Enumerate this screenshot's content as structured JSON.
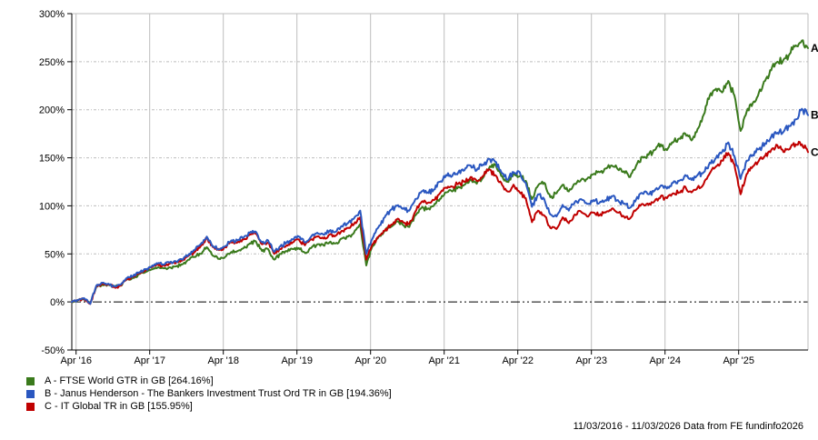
{
  "chart_data": {
    "type": "line",
    "title": "",
    "grid": true,
    "legend_position": "bottom-left",
    "x_range": {
      "start": "11/03/2016",
      "end": "11/03/2026",
      "months": 120
    },
    "x_axis": {
      "tick_labels": [
        "Apr '16",
        "Apr '17",
        "Apr '18",
        "Apr '19",
        "Apr '20",
        "Apr '21",
        "Apr '22",
        "Apr '23",
        "Apr '24",
        "Apr '25"
      ]
    },
    "y_axis": {
      "min": -50,
      "max": 300,
      "step": 50,
      "unit": "%",
      "tick_values": [
        300,
        250,
        200,
        150,
        100,
        50,
        0,
        -50
      ],
      "tick_labels": [
        "300%",
        "250%",
        "200%",
        "150%",
        "100%",
        "50%",
        "0%",
        "-50%"
      ]
    },
    "sampling": "monthly estimates read from chart, 11/03/2016 = 0%",
    "series": [
      {
        "key": "A",
        "name": "FTSE World GTR in GB",
        "final_value_pct": 264.16,
        "color": "#3a7a1c",
        "values": [
          0,
          2,
          3,
          -1,
          16,
          18,
          18,
          16,
          17,
          24,
          25,
          29,
          31,
          34,
          36,
          35,
          36,
          37,
          39,
          44,
          47,
          50,
          57,
          48,
          45,
          47,
          52,
          53,
          56,
          61,
          63,
          53,
          55,
          44,
          50,
          53,
          55,
          56,
          51,
          56,
          60,
          59,
          62,
          61,
          66,
          68,
          72,
          81,
          38,
          58,
          68,
          74,
          78,
          84,
          80,
          78,
          90,
          98,
          97,
          100,
          107,
          114,
          115,
          120,
          122,
          127,
          123,
          129,
          139,
          143,
          131,
          125,
          133,
          131,
          126,
          107,
          121,
          124,
          109,
          113,
          122,
          115,
          123,
          127,
          128,
          133,
          135,
          139,
          142,
          138,
          136,
          130,
          142,
          151,
          153,
          158,
          164,
          158,
          166,
          170,
          175,
          168,
          180,
          195,
          215,
          222,
          218,
          230,
          215,
          178,
          198,
          207,
          218,
          230,
          241,
          250,
          252,
          258,
          267,
          272,
          264.16
        ]
      },
      {
        "key": "B",
        "name": "Janus Henderson - The Bankers Investment Trust Ord TR in GB",
        "final_value_pct": 194.36,
        "color": "#2a57c0",
        "values": [
          0,
          2,
          4,
          -2,
          17,
          20,
          19,
          16,
          18,
          25,
          27,
          31,
          34,
          37,
          40,
          39,
          41,
          42,
          44,
          49,
          54,
          60,
          68,
          58,
          55,
          58,
          64,
          64,
          67,
          72,
          73,
          62,
          64,
          52,
          58,
          62,
          65,
          68,
          62,
          68,
          72,
          70,
          74,
          73,
          79,
          82,
          87,
          95,
          50,
          66,
          78,
          88,
          96,
          100,
          97,
          95,
          107,
          115,
          114,
          117,
          125,
          132,
          131,
          135,
          137,
          142,
          137,
          143,
          149,
          146,
          135,
          127,
          135,
          135,
          124,
          99,
          112,
          107,
          91,
          89,
          101,
          95,
          104,
          107,
          102,
          106,
          103,
          106,
          110,
          106,
          102,
          98,
          107,
          113,
          112,
          116,
          121,
          118,
          124,
          126,
          132,
          127,
          132,
          135,
          145,
          150,
          156,
          166,
          152,
          128,
          147,
          153,
          159,
          165,
          172,
          176,
          177,
          183,
          190,
          201,
          194.36
        ]
      },
      {
        "key": "C",
        "name": "IT Global TR in GB",
        "final_value_pct": 155.95,
        "color": "#c00000",
        "values": [
          0,
          2,
          3,
          -2,
          16,
          19,
          18,
          15,
          17,
          24,
          26,
          30,
          33,
          36,
          39,
          38,
          40,
          41,
          43,
          48,
          52,
          58,
          67,
          57,
          54,
          57,
          62,
          62,
          65,
          70,
          71,
          60,
          62,
          50,
          55,
          59,
          62,
          65,
          59,
          65,
          68,
          66,
          70,
          69,
          74,
          77,
          81,
          88,
          44,
          60,
          68,
          74,
          80,
          86,
          83,
          81,
          94,
          104,
          103,
          106,
          113,
          119,
          120,
          123,
          125,
          130,
          126,
          131,
          138,
          132,
          124,
          115,
          122,
          114,
          108,
          83,
          95,
          90,
          77,
          76,
          88,
          82,
          91,
          94,
          89,
          93,
          90,
          93,
          97,
          93,
          89,
          87,
          96,
          102,
          101,
          105,
          110,
          108,
          113,
          114,
          120,
          114,
          119,
          123,
          134,
          141,
          147,
          155,
          143,
          112,
          133,
          141,
          147,
          152,
          158,
          163,
          156,
          159,
          164,
          164,
          155.95
        ]
      }
    ]
  },
  "legend": {
    "items": [
      {
        "label": "A - FTSE World GTR in GB [264.16%]",
        "color": "#3a7a1c"
      },
      {
        "label": "B - Janus Henderson - The Bankers Investment Trust Ord TR in GB [194.36%]",
        "color": "#2a57c0"
      },
      {
        "label": "C - IT Global TR in GB [155.95%]",
        "color": "#c00000"
      }
    ]
  },
  "footer": {
    "text": "11/03/2016 - 11/03/2026 Data from FE fundinfo2026"
  },
  "colors": {
    "grid": "#bdbdbd",
    "zero_line": "#000000",
    "axis": "#000000",
    "background": "#ffffff"
  }
}
